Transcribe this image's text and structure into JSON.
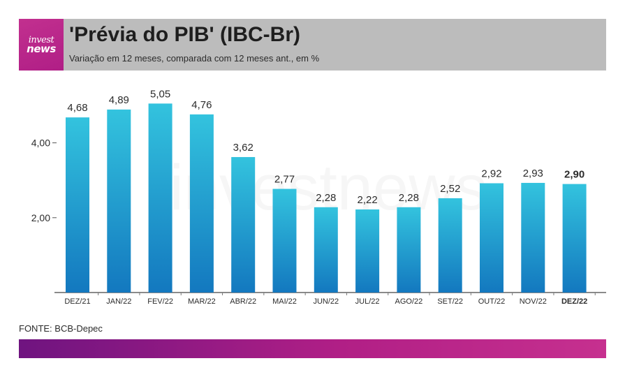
{
  "header": {
    "logo_line1": "invest",
    "logo_line2": "news",
    "title": "'Prévia do PIB' (IBC-Br)",
    "subtitle": "Variação em 12 meses, comparada com 12 meses ant., em %"
  },
  "watermark": "investnews",
  "source": "FONTE: BCB-Depec",
  "colors": {
    "bar_top": "#33c3de",
    "bar_bottom": "#1378bf",
    "header_bg": "#bcbcbc",
    "brand": "#b01e86"
  },
  "chart_data": {
    "type": "bar",
    "categories": [
      "DEZ/21",
      "JAN/22",
      "FEV/22",
      "MAR/22",
      "ABR/22",
      "MAI/22",
      "JUN/22",
      "JUL/22",
      "AGO/22",
      "SET/22",
      "OUT/22",
      "NOV/22",
      "DEZ/22"
    ],
    "values": [
      4.68,
      4.89,
      5.05,
      4.76,
      3.62,
      2.77,
      2.28,
      2.22,
      2.28,
      2.52,
      2.92,
      2.93,
      2.9
    ],
    "value_labels": [
      "4,68",
      "4,89",
      "5,05",
      "4,76",
      "3,62",
      "2,77",
      "2,28",
      "2,22",
      "2,28",
      "2,52",
      "2,92",
      "2,93",
      "2,90"
    ],
    "highlight_index": 12,
    "yticks": [
      2,
      4
    ],
    "ytick_labels": [
      "2,00",
      "4,00"
    ],
    "ylim": [
      0,
      5.5
    ],
    "grid": false,
    "title": "'Prévia do PIB' (IBC-Br)",
    "xlabel": "",
    "ylabel": ""
  }
}
